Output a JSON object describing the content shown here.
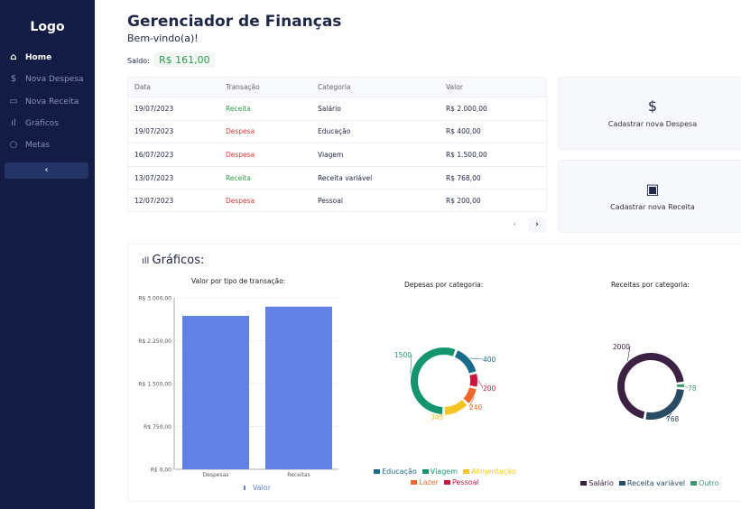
{
  "sidebar": {
    "logo": "Logo",
    "items": [
      {
        "label": "Home",
        "icon": "home-icon"
      },
      {
        "label": "Nova Despesa",
        "icon": "dollar-icon"
      },
      {
        "label": "Nova Receita",
        "icon": "wallet-icon"
      },
      {
        "label": "Gráficos",
        "icon": "bar-chart-icon"
      },
      {
        "label": "Metas",
        "icon": "target-icon"
      }
    ],
    "collapse": "‹"
  },
  "header": {
    "title": "Gerenciador de Finanças",
    "welcome": "Bem-vindo(a)!",
    "saldo_label": "Saldo:",
    "saldo_value": "R$ 161,00"
  },
  "table": {
    "headers": [
      "Data",
      "Transação",
      "Categoria",
      "Valor"
    ],
    "rows": [
      [
        "19/07/2023",
        "Receita",
        "Salário",
        "R$ 2.000,00"
      ],
      [
        "19/07/2023",
        "Despesa",
        "Educação",
        "R$ 400,00"
      ],
      [
        "16/07/2023",
        "Despesa",
        "Viagem",
        "R$ 1.500,00"
      ],
      [
        "13/07/2023",
        "Receita",
        "Receita variável",
        "R$ 768,00"
      ],
      [
        "12/07/2023",
        "Despesa",
        "Pessoal",
        "R$ 200,00"
      ]
    ],
    "prev": "‹",
    "next": "›"
  },
  "cards": {
    "despesa": "Cadastrar nova Despesa",
    "receita": "Cadastrar nova Receita"
  },
  "graphs": {
    "title": "Gráficos:"
  },
  "chart_data": [
    {
      "type": "bar",
      "title": "Valor por tipo de transação:",
      "categories": [
        "Despesas",
        "Receitas"
      ],
      "values": [
        2685,
        2846
      ],
      "ylim": [
        0,
        3000
      ],
      "yticks": [
        "R$ 0,00",
        "R$ 750,00",
        "R$ 1.500,00",
        "R$ 2.250,00",
        "R$ 3.000,00"
      ],
      "legend": "Valor",
      "color": "#6380e4"
    },
    {
      "type": "pie",
      "title": "Depesas por categoria:",
      "labels": [
        "Educação",
        "Pessoal",
        "Lazer",
        "Alimentação",
        "Viagem"
      ],
      "values": [
        400,
        200,
        240,
        345,
        1500
      ],
      "colors": [
        "#1a6a8c",
        "#c8163c",
        "#f2672c",
        "#f7c523",
        "#14956e"
      ],
      "legend_order": [
        "Educação",
        "Viagem",
        "Alimentação",
        "Lazer",
        "Pessoal"
      ]
    },
    {
      "type": "pie",
      "title": "Receitas por categoria:",
      "labels": [
        "Outro",
        "Receita variável",
        "Salário"
      ],
      "values": [
        78,
        768,
        2000
      ],
      "colors": [
        "#3e9a6d",
        "#2a4b64",
        "#3c2144"
      ],
      "legend_order": [
        "Salário",
        "Receita variável",
        "Outro"
      ]
    }
  ]
}
